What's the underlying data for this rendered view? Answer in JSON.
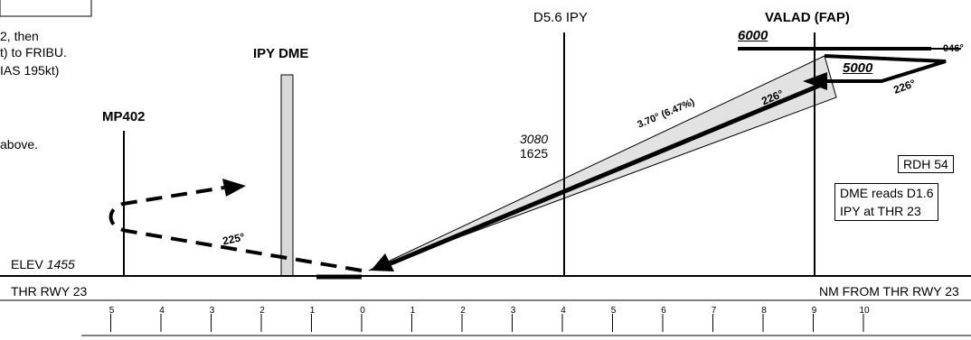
{
  "labels": {
    "missed_approach": [
      "2, then",
      "t) to FRIBU.",
      "IAS 195kt)",
      "above."
    ],
    "mp402": "MP402",
    "ipy_dme": "IPY DME",
    "d56": "D5.6 IPY",
    "valad": "VALAD (FAP)",
    "alt_6000": "6000",
    "alt_5000": "5000",
    "course_046": "046°",
    "course_226_top": "226°",
    "course_226_path": "226°",
    "glidepath": "3.70° (6.47%)",
    "alt_3080": "3080",
    "alt_1625": "1625",
    "rdh": "RDH 54",
    "dme_note": [
      "DME reads D1.6",
      "IPY at THR 23"
    ],
    "course_225": "225°",
    "elev_label": "ELEV",
    "elev_value": "1455",
    "thr_left": "THR RWY 23",
    "nm_from": "NM FROM THR RWY 23"
  },
  "scale": {
    "ticks": [
      "5",
      "4",
      "3",
      "2",
      "1",
      "0",
      "1",
      "2",
      "3",
      "4",
      "5",
      "6",
      "7",
      "8",
      "9",
      "10"
    ],
    "values": [
      -5,
      -4,
      -3,
      -2,
      -1,
      0,
      1,
      2,
      3,
      4,
      5,
      6,
      7,
      8,
      9,
      10
    ]
  },
  "colors": {
    "ink": "#000000",
    "dme_bar": "#d8d8d8",
    "cone": "#e2e2e2"
  },
  "icons": [
    "arrowhead-icon"
  ]
}
